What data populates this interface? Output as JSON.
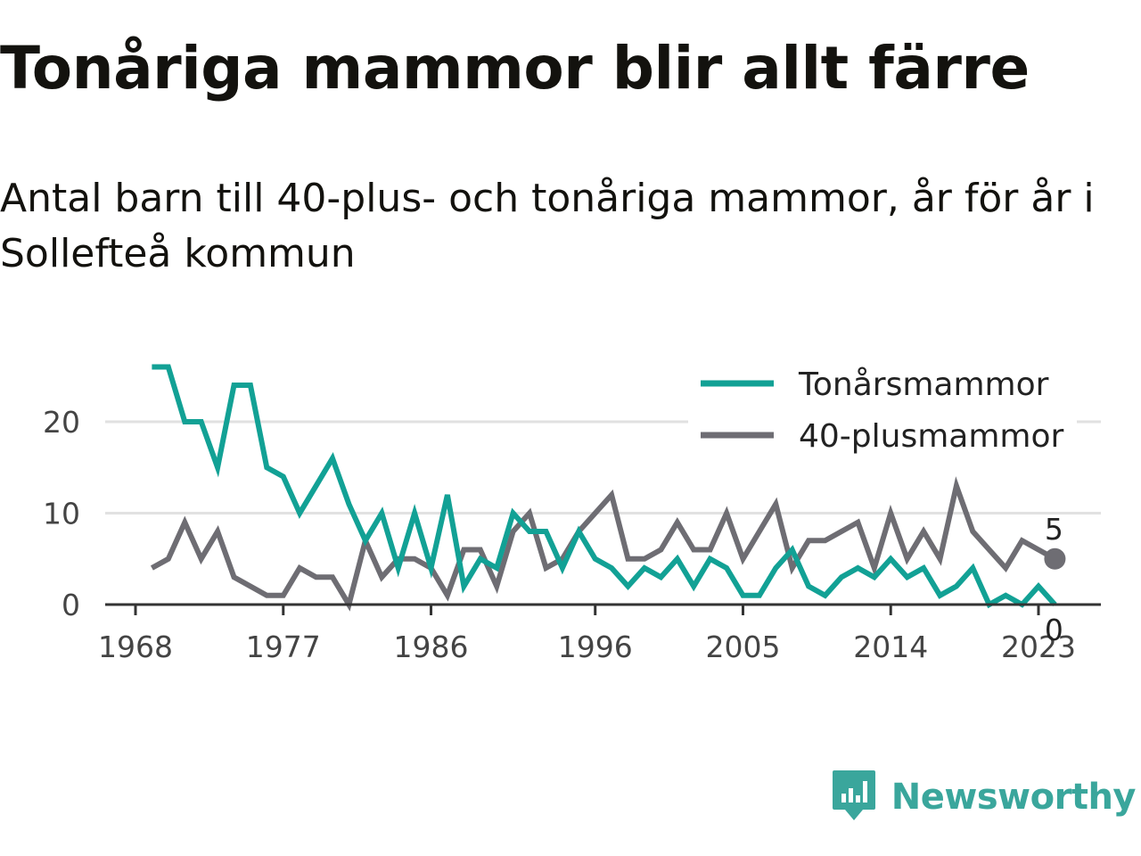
{
  "title": "Tonåriga mammor blir allt färre",
  "subtitle": "Antal barn till 40-plus- och tonåriga mammor, år för år i Sollefteå kommun",
  "brand": {
    "name": "Newsworthy",
    "icon": "newsworthy-logo-icon",
    "color": "#3aa69c"
  },
  "chart_data": {
    "type": "line",
    "x": [
      1969,
      1970,
      1971,
      1972,
      1973,
      1974,
      1975,
      1976,
      1977,
      1978,
      1979,
      1980,
      1981,
      1982,
      1983,
      1984,
      1985,
      1986,
      1987,
      1988,
      1989,
      1990,
      1991,
      1992,
      1993,
      1994,
      1995,
      1996,
      1997,
      1998,
      1999,
      2000,
      2001,
      2002,
      2003,
      2004,
      2005,
      2006,
      2007,
      2008,
      2009,
      2010,
      2011,
      2012,
      2013,
      2014,
      2015,
      2016,
      2017,
      2018,
      2019,
      2020,
      2021,
      2022,
      2023,
      2024
    ],
    "series": [
      {
        "name": "Tonårsmammor",
        "color": "#12a195",
        "values": [
          26,
          26,
          20,
          20,
          15,
          24,
          24,
          15,
          14,
          10,
          13,
          16,
          11,
          7,
          10,
          4,
          10,
          4,
          12,
          2,
          5,
          4,
          10,
          8,
          8,
          4,
          8,
          5,
          4,
          2,
          4,
          3,
          5,
          2,
          5,
          4,
          1,
          1,
          4,
          6,
          2,
          1,
          3,
          4,
          3,
          5,
          3,
          4,
          1,
          2,
          4,
          0,
          1,
          0,
          2,
          0
        ]
      },
      {
        "name": "40-plusmammor",
        "color": "#6e6d73",
        "values": [
          4,
          5,
          9,
          5,
          8,
          3,
          2,
          1,
          1,
          4,
          3,
          3,
          0,
          7,
          3,
          5,
          5,
          4,
          1,
          6,
          6,
          2,
          8,
          10,
          4,
          5,
          8,
          10,
          12,
          5,
          5,
          6,
          9,
          6,
          6,
          10,
          5,
          8,
          11,
          4,
          7,
          7,
          8,
          9,
          4,
          10,
          5,
          8,
          5,
          13,
          8,
          6,
          4,
          7,
          6,
          5
        ]
      }
    ],
    "x_ticks": [
      "1968",
      "1977",
      "1986",
      "1996",
      "2005",
      "2014",
      "2023"
    ],
    "y_ticks": [
      "0",
      "10",
      "20"
    ],
    "end_labels": [
      "5",
      "0"
    ],
    "xlim": [
      1968,
      2025
    ],
    "ylim": [
      0,
      26
    ],
    "grid": true,
    "legend_position": "top-right",
    "xlabel": "",
    "ylabel": ""
  }
}
